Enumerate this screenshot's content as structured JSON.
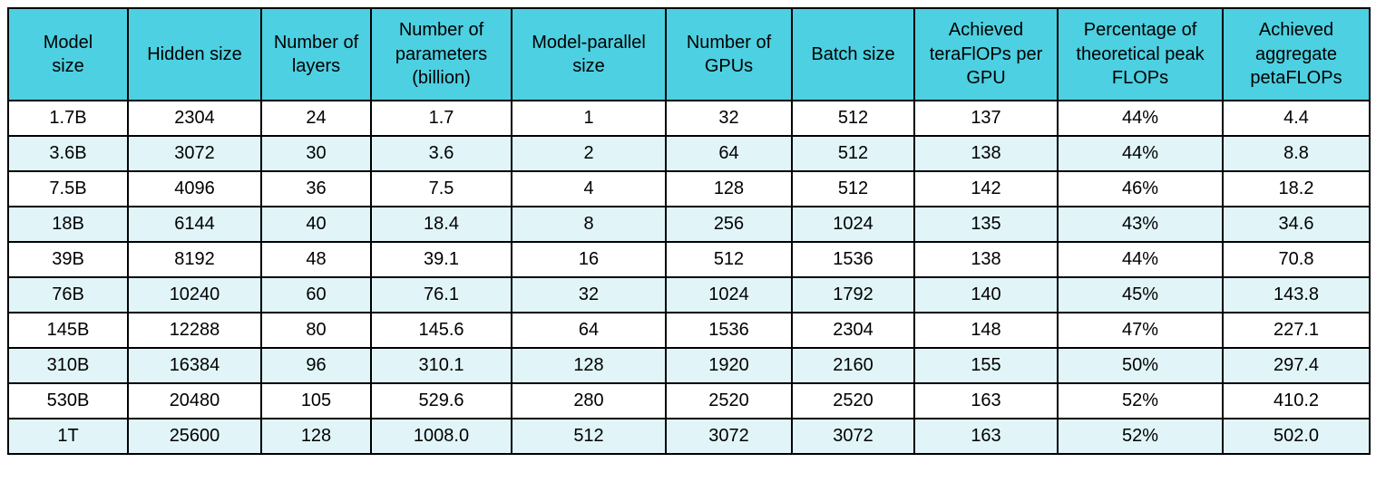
{
  "colors": {
    "header_bg": "#4dd0e1",
    "alt_row_bg": "#e1f5f9",
    "row_bg": "#ffffff",
    "border": "#000000",
    "text": "#000000"
  },
  "chart_data": {
    "type": "table",
    "columns": [
      "Model size",
      "Hidden size",
      "Number of layers",
      "Number of parameters (billion)",
      "Model-parallel size",
      "Number of GPUs",
      "Batch size",
      "Achieved teraFlOPs per GPU",
      "Percentage of theoretical peak FLOPs",
      "Achieved aggregate petaFLOPs"
    ],
    "rows": [
      [
        "1.7B",
        "2304",
        "24",
        "1.7",
        "1",
        "32",
        "512",
        "137",
        "44%",
        "4.4"
      ],
      [
        "3.6B",
        "3072",
        "30",
        "3.6",
        "2",
        "64",
        "512",
        "138",
        "44%",
        "8.8"
      ],
      [
        "7.5B",
        "4096",
        "36",
        "7.5",
        "4",
        "128",
        "512",
        "142",
        "46%",
        "18.2"
      ],
      [
        "18B",
        "6144",
        "40",
        "18.4",
        "8",
        "256",
        "1024",
        "135",
        "43%",
        "34.6"
      ],
      [
        "39B",
        "8192",
        "48",
        "39.1",
        "16",
        "512",
        "1536",
        "138",
        "44%",
        "70.8"
      ],
      [
        "76B",
        "10240",
        "60",
        "76.1",
        "32",
        "1024",
        "1792",
        "140",
        "45%",
        "143.8"
      ],
      [
        "145B",
        "12288",
        "80",
        "145.6",
        "64",
        "1536",
        "2304",
        "148",
        "47%",
        "227.1"
      ],
      [
        "310B",
        "16384",
        "96",
        "310.1",
        "128",
        "1920",
        "2160",
        "155",
        "50%",
        "297.4"
      ],
      [
        "530B",
        "20480",
        "105",
        "529.6",
        "280",
        "2520",
        "2520",
        "163",
        "52%",
        "410.2"
      ],
      [
        "1T",
        "25600",
        "128",
        "1008.0",
        "512",
        "3072",
        "3072",
        "163",
        "52%",
        "502.0"
      ]
    ]
  }
}
